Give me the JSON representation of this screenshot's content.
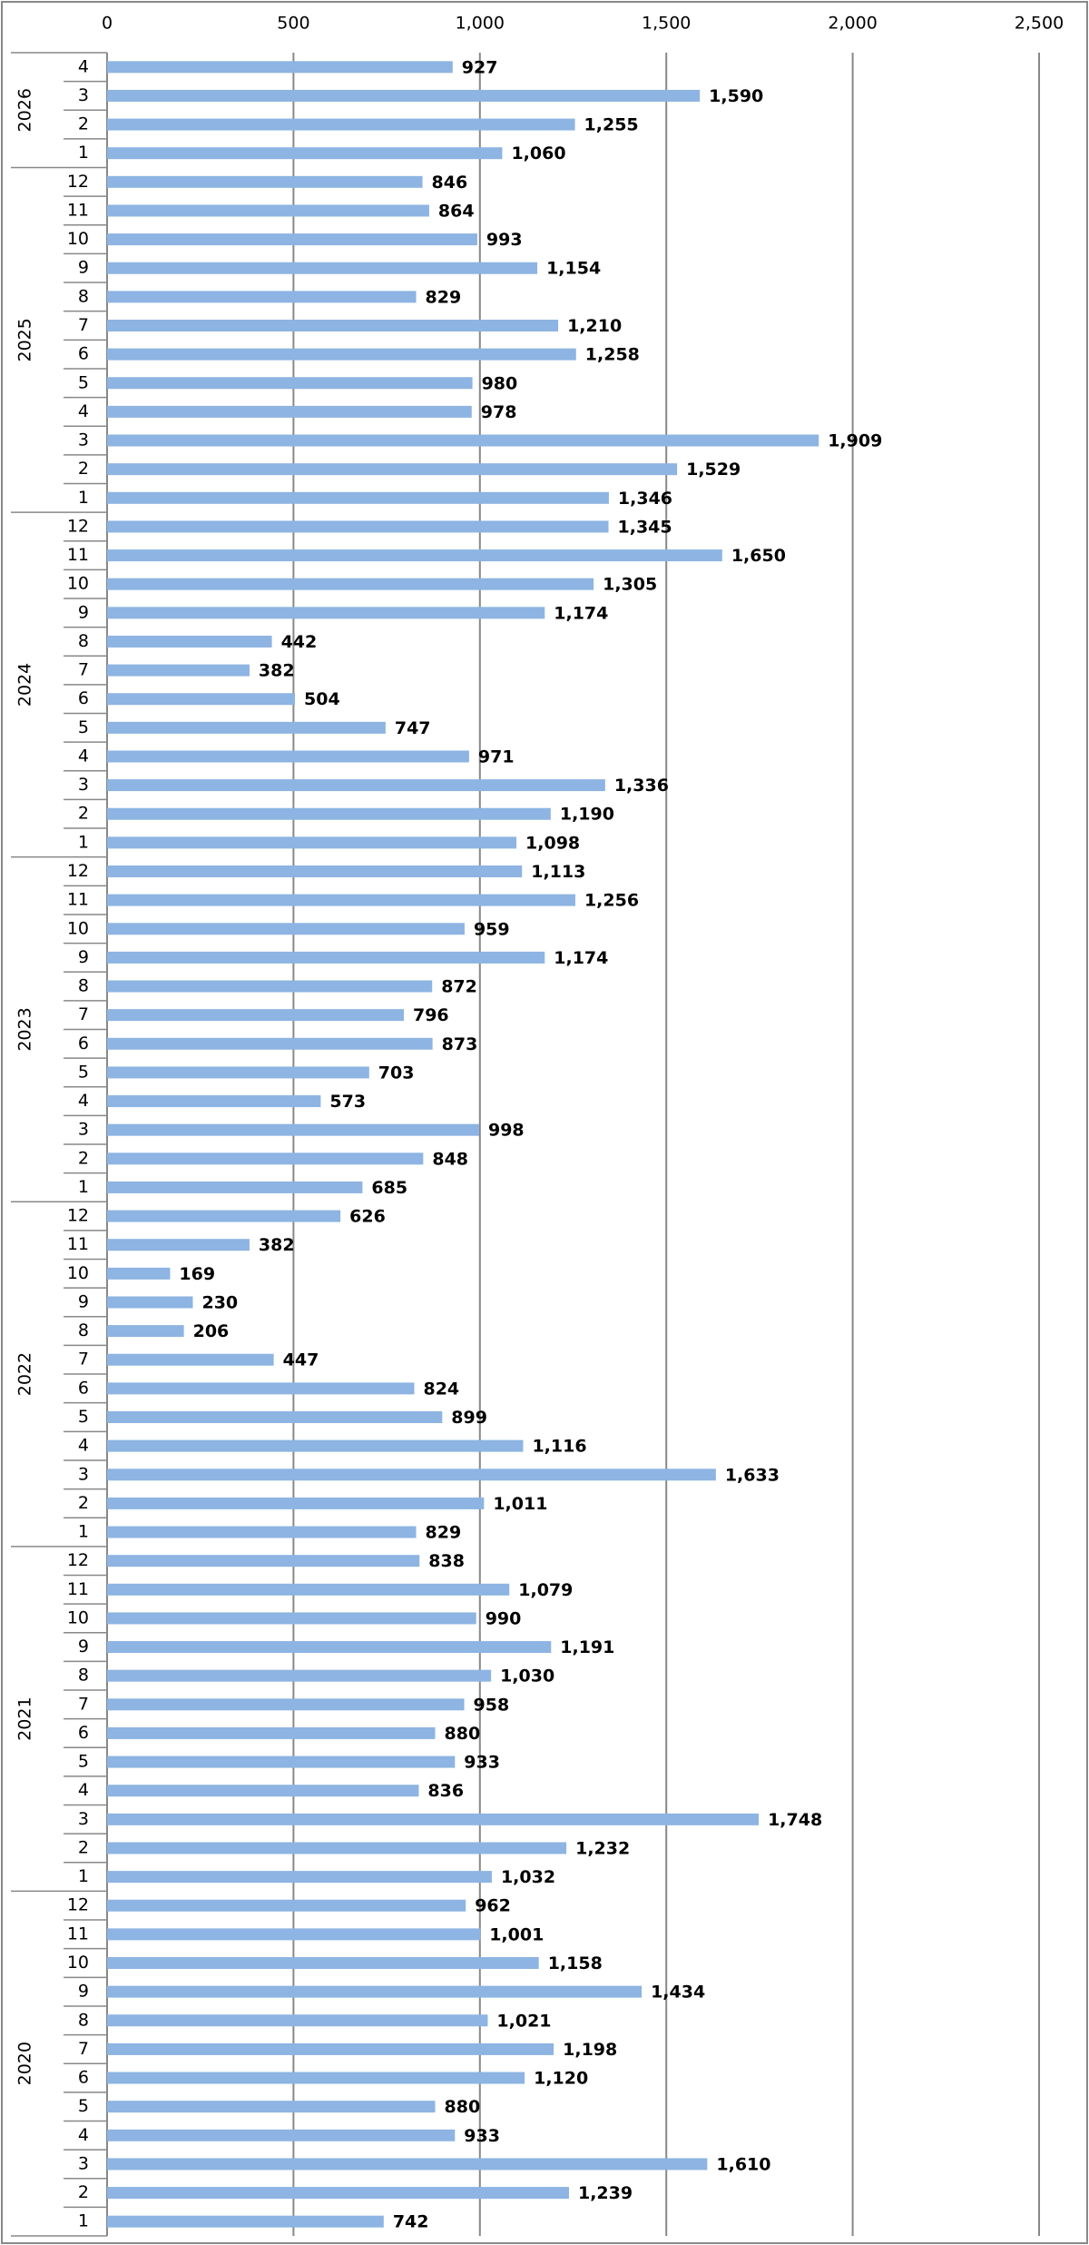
{
  "chart_data": {
    "type": "bar",
    "orientation": "horizontal",
    "color": "#8db4e2",
    "xlim": [
      0,
      2500
    ],
    "xticks": [
      0,
      500,
      {
        "value": 1000,
        "label": "1,000"
      },
      {
        "value": 1500,
        "label": "1,500"
      },
      {
        "value": 2000,
        "label": "2,000"
      },
      {
        "value": 2500,
        "label": "2,500"
      }
    ],
    "grid": true,
    "groups": [
      {
        "name": "2026",
        "categories": [
          "4",
          "3",
          "2",
          "1"
        ],
        "values": [
          927,
          1590,
          1255,
          1060
        ],
        "value_labels": [
          "927",
          "1,590",
          "1,255",
          "1,060"
        ]
      },
      {
        "name": "2025",
        "categories": [
          "12",
          "11",
          "10",
          "9",
          "8",
          "7",
          "6",
          "5",
          "4",
          "3",
          "2",
          "1"
        ],
        "values": [
          846,
          864,
          993,
          1154,
          829,
          1210,
          1258,
          980,
          978,
          1909,
          1529,
          1346
        ],
        "value_labels": [
          "846",
          "864",
          "993",
          "1,154",
          "829",
          "1,210",
          "1,258",
          "980",
          "978",
          "1,909",
          "1,529",
          "1,346"
        ]
      },
      {
        "name": "2024",
        "categories": [
          "12",
          "11",
          "10",
          "9",
          "8",
          "7",
          "6",
          "5",
          "4",
          "3",
          "2",
          "1"
        ],
        "values": [
          1345,
          1650,
          1305,
          1174,
          442,
          382,
          504,
          747,
          971,
          1336,
          1190,
          1098
        ],
        "value_labels": [
          "1,345",
          "1,650",
          "1,305",
          "1,174",
          "442",
          "382",
          "504",
          "747",
          "971",
          "1,336",
          "1,190",
          "1,098"
        ]
      },
      {
        "name": "2023",
        "categories": [
          "12",
          "11",
          "10",
          "9",
          "8",
          "7",
          "6",
          "5",
          "4",
          "3",
          "2",
          "1"
        ],
        "values": [
          1113,
          1256,
          959,
          1174,
          872,
          796,
          873,
          703,
          573,
          998,
          848,
          685
        ],
        "value_labels": [
          "1,113",
          "1,256",
          "959",
          "1,174",
          "872",
          "796",
          "873",
          "703",
          "573",
          "998",
          "848",
          "685"
        ]
      },
      {
        "name": "2022",
        "categories": [
          "12",
          "11",
          "10",
          "9",
          "8",
          "7",
          "6",
          "5",
          "4",
          "3",
          "2",
          "1"
        ],
        "values": [
          626,
          382,
          169,
          230,
          206,
          447,
          824,
          899,
          1116,
          1633,
          1011,
          829
        ],
        "value_labels": [
          "626",
          "382",
          "169",
          "230",
          "206",
          "447",
          "824",
          "899",
          "1,116",
          "1,633",
          "1,011",
          "829"
        ]
      },
      {
        "name": "2021",
        "categories": [
          "12",
          "11",
          "10",
          "9",
          "8",
          "7",
          "6",
          "5",
          "4",
          "3",
          "2",
          "1"
        ],
        "values": [
          838,
          1079,
          990,
          1191,
          1030,
          958,
          880,
          933,
          836,
          1748,
          1232,
          1032
        ],
        "value_labels": [
          "838",
          "1,079",
          "990",
          "1,191",
          "1,030",
          "958",
          "880",
          "933",
          "836",
          "1,748",
          "1,232",
          "1,032"
        ]
      },
      {
        "name": "2020",
        "categories": [
          "12",
          "11",
          "10",
          "9",
          "8",
          "7",
          "6",
          "5",
          "4",
          "3",
          "2",
          "1"
        ],
        "values": [
          962,
          1001,
          1158,
          1434,
          1021,
          1198,
          1120,
          880,
          933,
          1610,
          1239,
          742
        ],
        "value_labels": [
          "962",
          "1,001",
          "1,158",
          "1,434",
          "1,021",
          "1,198",
          "1,120",
          "880",
          "933",
          "1,610",
          "1,239",
          "742"
        ]
      }
    ]
  }
}
